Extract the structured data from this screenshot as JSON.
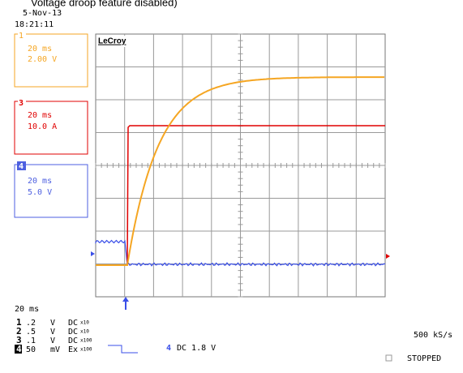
{
  "caption": "Voltage droop feature disabled)",
  "date": "5-Nov-13",
  "time": "18:21:11",
  "brand": "LeCroy",
  "channels": [
    {
      "number": "1",
      "timebase": "20 ms",
      "scale": "2.00 V"
    },
    {
      "number": "3",
      "timebase": "20 ms",
      "scale": "10.0 A"
    },
    {
      "number": "4",
      "timebase": "20 ms",
      "scale": "5.0 V"
    }
  ],
  "timebase": "20 ms",
  "settings": [
    {
      "channel": "1",
      "scale": ".2",
      "unit": "V",
      "coupling": "DC",
      "probe": "x10"
    },
    {
      "channel": "2",
      "scale": ".5",
      "unit": "V",
      "coupling": "DC",
      "probe": "x10"
    },
    {
      "channel": "3",
      "scale": ".1",
      "unit": "V",
      "coupling": "DC",
      "probe": "x100"
    },
    {
      "channel": "4",
      "scale": "50",
      "unit": "mV",
      "coupling": "Ex",
      "probe": "x100"
    }
  ],
  "trigger": {
    "channel": "4",
    "setting": "DC 1.8 V"
  },
  "sample_rate": "500 kS/s",
  "status": "STOPPED"
}
